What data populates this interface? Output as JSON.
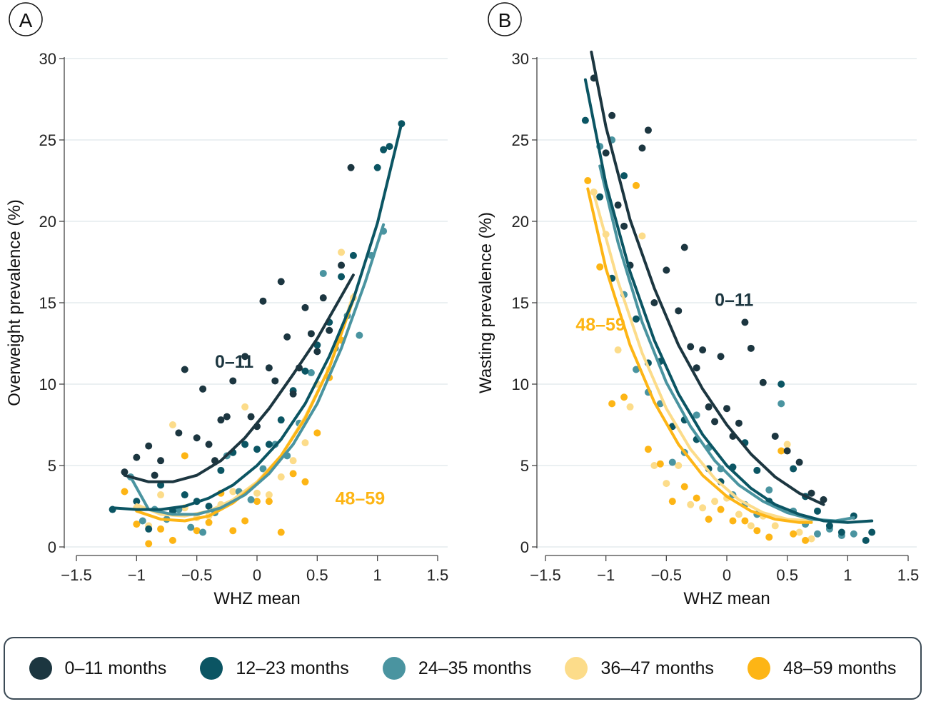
{
  "series_names": [
    "0–11 months",
    "12–23 months",
    "24–35 months",
    "36–47 months",
    "48–59 months"
  ],
  "colors": [
    "#1c3640",
    "#0b5563",
    "#4a94a0",
    "#fcdc8a",
    "#fdb515"
  ],
  "chart_data": [
    {
      "type": "scatter",
      "panel": "A",
      "xlabel": "WHZ mean",
      "ylabel": "Overweight prevalence (%)",
      "xlim": [
        -1.5,
        1.5
      ],
      "ylim": [
        0,
        30
      ],
      "xticks": [
        "−1.5",
        "−1",
        "−0.5",
        "0",
        "0.5",
        "1",
        "1.5"
      ],
      "yticks": [
        "0",
        "5",
        "10",
        "15",
        "20",
        "25",
        "30"
      ],
      "annotations": [
        {
          "text": "0–11",
          "x": -0.35,
          "y": 11.0,
          "series": 0
        },
        {
          "text": "48–59",
          "x": 0.65,
          "y": 2.6,
          "series": 4
        }
      ],
      "fits": [
        {
          "name": "0–11 months",
          "x": [
            -1.1,
            -0.9,
            -0.7,
            -0.5,
            -0.3,
            -0.1,
            0.1,
            0.3,
            0.5,
            0.7,
            0.8
          ],
          "y": [
            4.4,
            4.0,
            4.0,
            4.4,
            5.3,
            6.7,
            8.5,
            10.6,
            12.8,
            15.4,
            16.7
          ]
        },
        {
          "name": "12–23 months",
          "x": [
            -1.2,
            -1.0,
            -0.8,
            -0.6,
            -0.4,
            -0.2,
            0.0,
            0.2,
            0.4,
            0.6,
            0.8,
            1.0,
            1.2
          ],
          "y": [
            2.4,
            2.3,
            2.3,
            2.5,
            3.0,
            3.8,
            5.0,
            6.6,
            8.8,
            11.7,
            15.2,
            19.9,
            26.0
          ]
        },
        {
          "name": "24–35 months",
          "x": [
            -1.05,
            -0.9,
            -0.7,
            -0.5,
            -0.3,
            -0.1,
            0.1,
            0.3,
            0.5,
            0.7,
            0.9,
            1.05
          ],
          "y": [
            4.3,
            2.3,
            2.0,
            2.0,
            2.4,
            3.2,
            4.5,
            6.3,
            8.8,
            12.2,
            16.3,
            19.8
          ]
        },
        {
          "name": "36–47 months",
          "x": [
            -1.0,
            -0.8,
            -0.6,
            -0.4,
            -0.2,
            0.0,
            0.2,
            0.4,
            0.6,
            0.8
          ],
          "y": [
            2.6,
            2.0,
            1.9,
            2.2,
            2.9,
            4.0,
            5.6,
            8.0,
            11.0,
            15.5
          ]
        },
        {
          "name": "48–59 months",
          "x": [
            -1.0,
            -0.8,
            -0.6,
            -0.4,
            -0.2,
            0.0,
            0.2,
            0.4,
            0.6,
            0.8
          ],
          "y": [
            2.2,
            1.7,
            1.6,
            1.9,
            2.7,
            3.9,
            5.6,
            7.9,
            11.0,
            15.2
          ]
        }
      ],
      "points": [
        {
          "series": 0,
          "x": [
            -1.1,
            -1.0,
            -0.9,
            -0.85,
            -0.8,
            -0.65,
            -0.6,
            -0.5,
            -0.45,
            -0.4,
            -0.35,
            -0.3,
            -0.25,
            -0.2,
            -0.1,
            -0.05,
            0.0,
            0.05,
            0.1,
            0.15,
            0.2,
            0.25,
            0.3,
            0.35,
            0.4,
            0.45,
            0.5,
            0.55,
            0.6,
            0.7,
            0.78
          ],
          "y": [
            4.6,
            5.5,
            6.2,
            4.4,
            5.3,
            7.0,
            10.9,
            6.7,
            9.7,
            6.3,
            5.3,
            7.8,
            8.0,
            10.2,
            11.7,
            8.0,
            7.4,
            15.1,
            11.0,
            10.2,
            16.3,
            12.9,
            9.4,
            11.0,
            14.7,
            13.1,
            12.0,
            15.3,
            13.3,
            17.3,
            23.3
          ]
        },
        {
          "series": 1,
          "x": [
            -1.2,
            -1.0,
            -0.9,
            -0.8,
            -0.7,
            -0.6,
            -0.5,
            -0.4,
            -0.3,
            -0.2,
            -0.1,
            0.0,
            0.1,
            0.2,
            0.3,
            0.4,
            0.5,
            0.6,
            0.7,
            0.8,
            1.0,
            1.05,
            1.1,
            1.2
          ],
          "y": [
            2.3,
            2.8,
            1.1,
            3.8,
            2.2,
            3.2,
            2.8,
            2.5,
            4.7,
            5.8,
            6.3,
            6.0,
            6.3,
            7.8,
            9.6,
            10.8,
            12.4,
            13.8,
            16.6,
            17.9,
            23.3,
            24.4,
            24.6,
            26.0
          ]
        },
        {
          "series": 2,
          "x": [
            -1.05,
            -0.95,
            -0.85,
            -0.75,
            -0.65,
            -0.55,
            -0.45,
            -0.35,
            -0.25,
            -0.15,
            -0.05,
            0.05,
            0.15,
            0.25,
            0.35,
            0.45,
            0.55,
            0.65,
            0.75,
            0.85,
            0.95,
            1.05
          ],
          "y": [
            4.3,
            1.6,
            2.3,
            1.7,
            2.3,
            1.2,
            0.9,
            2.1,
            5.6,
            3.4,
            2.9,
            4.8,
            6.3,
            5.6,
            7.6,
            10.7,
            16.8,
            12.2,
            14.2,
            13.0,
            17.9,
            19.4
          ]
        },
        {
          "series": 3,
          "x": [
            -1.0,
            -0.9,
            -0.8,
            -0.7,
            -0.6,
            -0.5,
            -0.4,
            -0.3,
            -0.2,
            -0.1,
            0.0,
            0.1,
            0.2,
            0.3,
            0.4,
            0.5,
            0.6,
            0.7,
            0.8
          ],
          "y": [
            2.4,
            1.3,
            3.2,
            7.5,
            2.4,
            1.8,
            1.9,
            2.6,
            3.4,
            8.6,
            3.3,
            3.2,
            4.3,
            5.3,
            6.4,
            10.0,
            10.9,
            18.1,
            15.3
          ]
        },
        {
          "series": 4,
          "x": [
            -1.1,
            -1.0,
            -0.9,
            -0.8,
            -0.7,
            -0.6,
            -0.5,
            -0.4,
            -0.3,
            -0.2,
            -0.1,
            0.0,
            0.1,
            0.2,
            0.3,
            0.4,
            0.5,
            0.6,
            0.7
          ],
          "y": [
            3.4,
            1.4,
            0.2,
            1.1,
            0.4,
            5.6,
            1.0,
            1.5,
            3.3,
            1.0,
            1.6,
            2.8,
            2.8,
            0.9,
            4.5,
            4.0,
            7.0,
            10.4,
            12.7
          ]
        }
      ]
    },
    {
      "type": "scatter",
      "panel": "B",
      "xlabel": "WHZ mean",
      "ylabel": "Wasting prevalence (%)",
      "xlim": [
        -1.5,
        1.5
      ],
      "ylim": [
        0,
        30
      ],
      "xticks": [
        "−1.5",
        "−1",
        "−0.5",
        "0",
        "0.5",
        "1",
        "1.5"
      ],
      "yticks": [
        "0",
        "5",
        "10",
        "15",
        "20",
        "25",
        "30"
      ],
      "annotations": [
        {
          "text": "0–11",
          "x": -0.1,
          "y": 14.8,
          "series": 0
        },
        {
          "text": "48–59",
          "x": -1.25,
          "y": 13.3,
          "series": 4
        }
      ],
      "fits": [
        {
          "name": "0–11 months",
          "x": [
            -1.12,
            -1.0,
            -0.8,
            -0.6,
            -0.4,
            -0.2,
            0.0,
            0.2,
            0.4,
            0.6,
            0.8
          ],
          "y": [
            30.4,
            25.8,
            20.1,
            15.9,
            12.4,
            9.7,
            7.5,
            5.7,
            4.3,
            3.3,
            2.6
          ]
        },
        {
          "name": "12–23 months",
          "x": [
            -1.17,
            -1.0,
            -0.8,
            -0.6,
            -0.4,
            -0.2,
            0.0,
            0.2,
            0.4,
            0.6,
            0.8,
            1.0,
            1.2
          ],
          "y": [
            28.7,
            22.3,
            16.9,
            12.7,
            9.4,
            6.9,
            5.0,
            3.6,
            2.6,
            2.0,
            1.6,
            1.5,
            1.6
          ]
        },
        {
          "name": "24–35 months",
          "x": [
            -1.05,
            -0.9,
            -0.7,
            -0.5,
            -0.3,
            -0.1,
            0.1,
            0.3,
            0.5,
            0.7,
            0.9,
            1.05
          ],
          "y": [
            23.4,
            18.7,
            13.8,
            10.1,
            7.4,
            5.3,
            3.8,
            2.8,
            2.1,
            1.7,
            1.6,
            1.8
          ]
        },
        {
          "name": "36–47 months",
          "x": [
            -1.1,
            -0.9,
            -0.7,
            -0.5,
            -0.3,
            -0.1,
            0.1,
            0.3,
            0.5,
            0.7
          ],
          "y": [
            21.7,
            16.3,
            11.9,
            8.5,
            6.0,
            4.2,
            2.9,
            2.1,
            1.7,
            1.6
          ]
        },
        {
          "name": "48–59 months",
          "x": [
            -1.15,
            -1.0,
            -0.8,
            -0.6,
            -0.4,
            -0.2,
            0.0,
            0.2,
            0.4,
            0.6,
            0.7
          ],
          "y": [
            22.0,
            17.1,
            12.4,
            8.9,
            6.3,
            4.4,
            3.1,
            2.2,
            1.7,
            1.5,
            1.5
          ]
        }
      ],
      "points": [
        {
          "series": 0,
          "x": [
            -1.1,
            -1.0,
            -0.95,
            -0.9,
            -0.85,
            -0.8,
            -0.7,
            -0.65,
            -0.6,
            -0.5,
            -0.4,
            -0.35,
            -0.3,
            -0.25,
            -0.2,
            -0.15,
            -0.1,
            -0.05,
            0.0,
            0.05,
            0.1,
            0.15,
            0.2,
            0.3,
            0.4,
            0.5,
            0.6,
            0.7,
            0.8
          ],
          "y": [
            28.8,
            24.2,
            26.5,
            21.0,
            19.7,
            17.3,
            24.5,
            25.6,
            15.0,
            17.0,
            14.5,
            18.4,
            12.3,
            11.0,
            12.1,
            8.6,
            7.7,
            11.7,
            8.5,
            6.8,
            7.6,
            13.8,
            12.2,
            10.1,
            6.8,
            5.9,
            5.2,
            3.3,
            2.9
          ]
        },
        {
          "series": 1,
          "x": [
            -1.17,
            -1.05,
            -0.95,
            -0.85,
            -0.75,
            -0.65,
            -0.55,
            -0.45,
            -0.35,
            -0.25,
            -0.15,
            -0.05,
            0.05,
            0.15,
            0.25,
            0.35,
            0.45,
            0.55,
            0.65,
            0.75,
            0.85,
            0.95,
            1.05,
            1.15,
            1.2
          ],
          "y": [
            26.2,
            21.5,
            16.5,
            22.8,
            14.0,
            11.3,
            11.4,
            7.4,
            7.8,
            6.6,
            4.8,
            4.0,
            4.9,
            6.4,
            4.7,
            2.8,
            10.0,
            4.8,
            3.1,
            2.2,
            1.3,
            0.9,
            1.9,
            0.4,
            0.9
          ]
        },
        {
          "series": 2,
          "x": [
            -1.05,
            -0.95,
            -0.85,
            -0.75,
            -0.65,
            -0.55,
            -0.45,
            -0.35,
            -0.25,
            -0.15,
            -0.05,
            0.05,
            0.15,
            0.25,
            0.35,
            0.45,
            0.55,
            0.65,
            0.75,
            0.85,
            0.95,
            1.05
          ],
          "y": [
            24.6,
            25.0,
            15.5,
            10.9,
            9.5,
            8.8,
            5.2,
            5.8,
            8.1,
            6.1,
            4.8,
            3.2,
            2.6,
            2.0,
            3.5,
            8.8,
            2.2,
            1.4,
            0.8,
            1.1,
            0.7,
            0.8
          ]
        },
        {
          "series": 3,
          "x": [
            -1.1,
            -1.0,
            -0.9,
            -0.8,
            -0.7,
            -0.6,
            -0.5,
            -0.4,
            -0.3,
            -0.2,
            -0.1,
            0.0,
            0.1,
            0.2,
            0.3,
            0.4,
            0.5,
            0.6,
            0.7
          ],
          "y": [
            21.8,
            19.2,
            12.1,
            8.6,
            19.1,
            5.0,
            3.9,
            5.0,
            2.6,
            2.4,
            2.8,
            3.0,
            2.0,
            1.3,
            1.9,
            1.3,
            6.3,
            0.9,
            0.5
          ]
        },
        {
          "series": 4,
          "x": [
            -1.15,
            -1.05,
            -0.95,
            -0.85,
            -0.75,
            -0.65,
            -0.55,
            -0.45,
            -0.35,
            -0.25,
            -0.15,
            -0.05,
            0.05,
            0.15,
            0.25,
            0.35,
            0.45,
            0.55,
            0.65
          ],
          "y": [
            22.5,
            17.2,
            8.8,
            9.2,
            22.2,
            6.0,
            5.1,
            2.8,
            3.7,
            3.0,
            1.7,
            2.3,
            1.6,
            1.6,
            1.0,
            0.6,
            5.9,
            0.8,
            0.4
          ]
        }
      ]
    }
  ]
}
